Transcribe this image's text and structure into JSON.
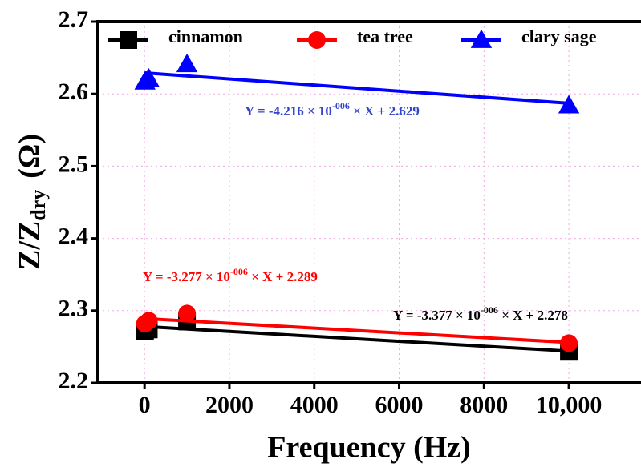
{
  "chart_data": {
    "type": "scatter",
    "xlabel": "Frequency (Hz)",
    "ylabel": {
      "main": "Z/Z",
      "sub": "dry",
      "unit": "(Ω)"
    },
    "xlim": [
      -1100,
      11700
    ],
    "ylim": [
      2.2,
      2.7
    ],
    "xticks": [
      0,
      2000,
      4000,
      6000,
      8000,
      {
        "value": 10000,
        "label": "10,000"
      }
    ],
    "yticks": [
      2.2,
      2.3,
      2.4,
      2.5,
      2.6,
      2.7
    ],
    "grid": true,
    "legend": "top",
    "series": [
      {
        "name": "cinnamon",
        "color": "#000000",
        "marker": "square",
        "x": [
          10,
          100,
          1000,
          10000
        ],
        "values": [
          2.271,
          2.274,
          2.285,
          2.243
        ],
        "fit_x": [
          10,
          10000
        ],
        "fit_values": [
          2.278,
          2.244
        ],
        "equation": {
          "text": "Y = -3.377 × 10",
          "exp": "-006",
          "rest": " × X + 2.278"
        }
      },
      {
        "name": "tea tree",
        "color": "#ff0000",
        "marker": "circle",
        "x": [
          10,
          100,
          1000,
          10000
        ],
        "values": [
          2.282,
          2.286,
          2.296,
          2.255
        ],
        "fit_x": [
          10,
          10000
        ],
        "fit_values": [
          2.289,
          2.256
        ],
        "equation": {
          "text": "Y = -3.277 × 10",
          "exp": "-006",
          "rest": " × X + 2.289"
        }
      },
      {
        "name": "clary sage",
        "color": "#0000ff",
        "marker": "triangle",
        "x": [
          10,
          100,
          1000,
          10000
        ],
        "values": [
          2.617,
          2.621,
          2.641,
          2.584
        ],
        "fit_x": [
          10,
          10000
        ],
        "fit_values": [
          2.629,
          2.587
        ],
        "equation": {
          "text": "Y = -4.216 × 10",
          "exp": "-006",
          "rest": " × X + 2.629"
        }
      }
    ]
  }
}
